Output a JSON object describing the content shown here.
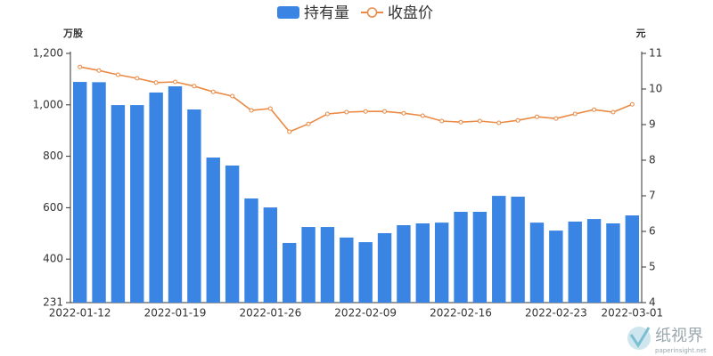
{
  "chart_data": {
    "type": "bar",
    "categories": [
      "2022-01-12",
      null,
      null,
      null,
      null,
      "2022-01-19",
      null,
      null,
      null,
      null,
      "2022-01-26",
      null,
      null,
      null,
      null,
      "2022-02-09",
      null,
      null,
      null,
      null,
      "2022-02-16",
      null,
      null,
      null,
      null,
      "2022-02-23",
      null,
      null,
      null,
      "2022-03-01"
    ],
    "series": [
      {
        "name": "持有量",
        "type": "bar",
        "color": "#3a84e4",
        "values": [
          1089,
          1088,
          999,
          999,
          1048,
          1072,
          982,
          795,
          764,
          636,
          601,
          463,
          525,
          525,
          484,
          466,
          501,
          532,
          539,
          542,
          584,
          584,
          646,
          643,
          542,
          511,
          546,
          556,
          539,
          570
        ]
      },
      {
        "name": "收盘价",
        "type": "line",
        "axis": "y2",
        "color": "#ea8a45",
        "values": [
          10.62,
          10.52,
          10.4,
          10.3,
          10.18,
          10.2,
          10.08,
          9.92,
          9.8,
          9.4,
          9.45,
          8.8,
          9.02,
          9.3,
          9.35,
          9.37,
          9.37,
          9.32,
          9.25,
          9.1,
          9.07,
          9.1,
          9.05,
          9.12,
          9.22,
          9.17,
          9.3,
          9.42,
          9.35,
          9.57
        ]
      }
    ],
    "ylabel": "万股",
    "y2label": "元",
    "ylim": [
      231,
      1200
    ],
    "yticks": [
      231,
      400,
      600,
      800,
      {
        "value": 1000,
        "label": "1,000"
      },
      {
        "value": 1200,
        "label": "1,200"
      }
    ],
    "y2lim": [
      4,
      11
    ],
    "y2ticks": [
      4,
      5,
      6,
      7,
      8,
      9,
      10,
      11
    ],
    "grid": false
  },
  "watermark": {
    "name": "纸视界",
    "url": "paperinsight.net"
  }
}
